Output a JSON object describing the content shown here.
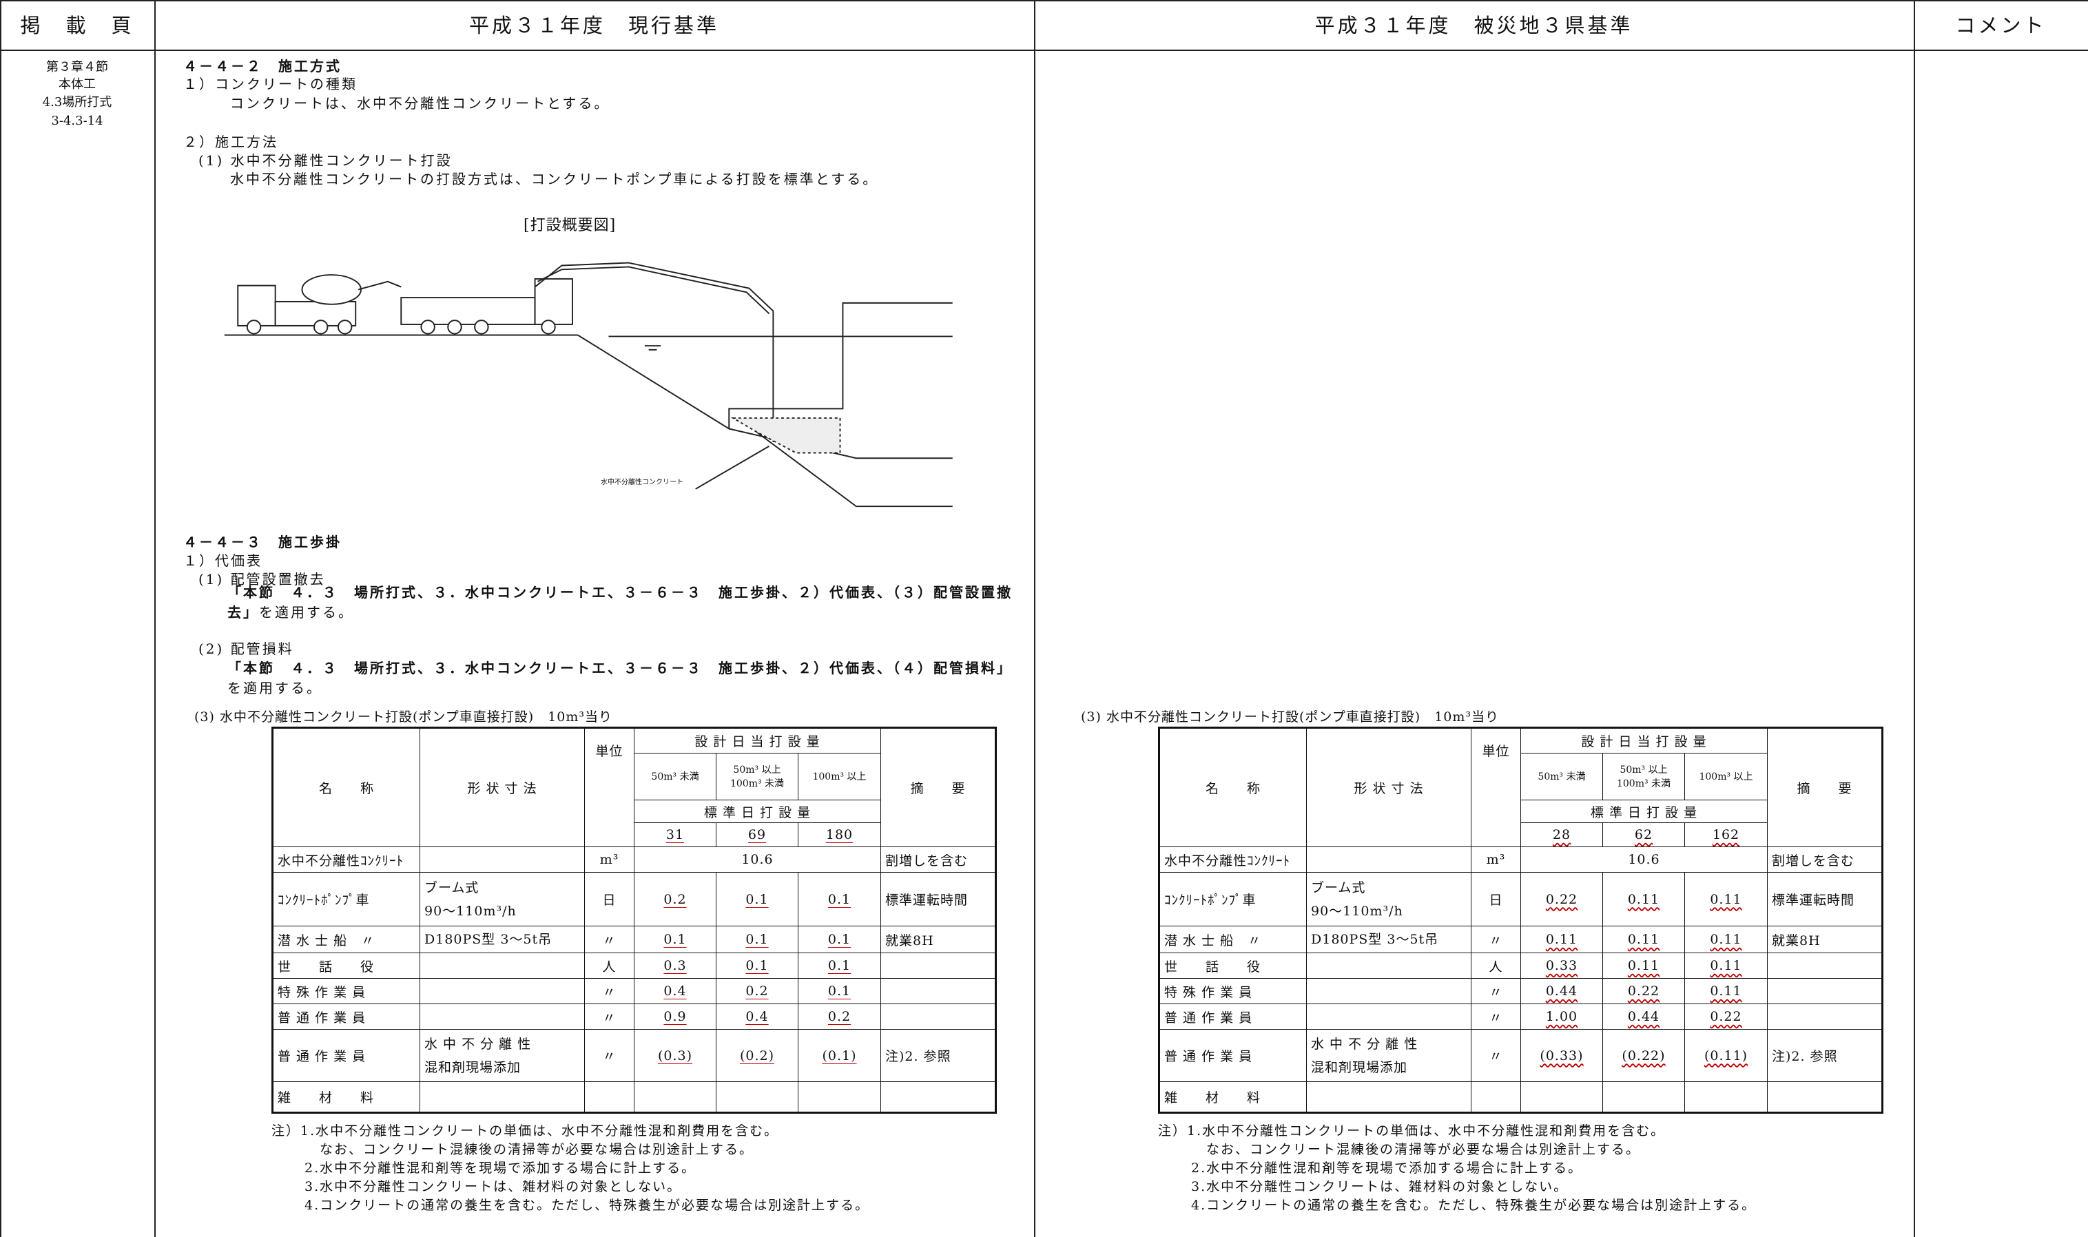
{
  "header": {
    "page": "掲　載　頁",
    "current": "平成３１年度　現行基準",
    "disaster": "平成３１年度　被災地３県基準",
    "comment": "コメント"
  },
  "page_ref": [
    "第３章４節",
    "本体工",
    "4.3場所打式",
    "3-4.3-14"
  ],
  "current": {
    "section1": {
      "heading": "４－４－２　施工方式",
      "item1": "１）コンクリートの種類",
      "item1_text": "コンクリートは、水中不分離性コンクリートとする。",
      "item2": "２）施工方法",
      "item2_sub": "(1) 水中不分離性コンクリート打設",
      "item2_text": "水中不分離性コンクリートの打設方式は、コンクリートポンプ車による打設を標準とする。"
    },
    "diagram": {
      "caption": "[打設概要図]",
      "label": "水中不分離性コンクリート"
    },
    "section2": {
      "heading": "４－４－３　施工歩掛",
      "item1": "１）代価表",
      "sub1": "(1) 配管設置撤去",
      "sub1_ref": "「本節　４．３　場所打式、３．水中コンクリートエ、３－６－３　施工歩掛、２）代価表、（３）配管設置撤去」",
      "sub1_tail": "を適用する。",
      "sub2": "(2) 配管損料",
      "sub2_ref": "「本節　４．３　場所打式、３．水中コンクリートエ、３－６－３　施工歩掛、２）代価表、（４）配管損料」",
      "sub2_tail": "を適用する。"
    },
    "table": {
      "title": "(3) 水中不分離性コンクリート打設(ポンプ車直接打設)　10m³当り",
      "columns": {
        "name": "名　　称",
        "shape": "形 状 寸 法",
        "unit": "単位",
        "design": "設 計 日 当 打 設 量",
        "sizes": [
          [
            "50m³ 未満"
          ],
          [
            "50m³ 以上",
            "100m³ 未満"
          ],
          [
            "100m³ 以上"
          ]
        ],
        "standard": "標 準 日 打 設 量",
        "remarks": "摘　　要"
      },
      "standard_values": [
        "31",
        "69",
        "180"
      ],
      "rows": [
        {
          "name": "水中不分離性ｺﾝｸﾘｰﾄ",
          "unit": "m³",
          "merged_value": "10.6",
          "remarks": "割増しを含む"
        },
        {
          "name": "ｺﾝｸﾘｰﾄﾎﾟﾝﾌﾟ車",
          "shape": [
            "ブーム式",
            "90～110m³/h"
          ],
          "unit": "日",
          "values": [
            "0.2",
            "0.1",
            "0.1"
          ],
          "remarks": "標準運転時間"
        },
        {
          "name": "潜 水 士 船　〃",
          "shape": [
            "D180PS型 3～5t吊"
          ],
          "unit": "〃",
          "values": [
            "0.1",
            "0.1",
            "0.1"
          ],
          "remarks": "就業8H"
        },
        {
          "name": "世　　話　　役",
          "unit": "人",
          "values": [
            "0.3",
            "0.1",
            "0.1"
          ]
        },
        {
          "name": "特 殊 作 業 員",
          "unit": "〃",
          "values": [
            "0.4",
            "0.2",
            "0.1"
          ]
        },
        {
          "name": "普 通 作 業 員",
          "unit": "〃",
          "values": [
            "0.9",
            "0.4",
            "0.2"
          ]
        },
        {
          "name": "普 通 作 業 員",
          "shape": [
            "水 中 不 分 離 性",
            "混和剤現場添加"
          ],
          "unit": "〃",
          "values": [
            "(0.3)",
            "(0.2)",
            "(0.1)"
          ],
          "remarks": "注)2. 参照"
        },
        {
          "name": "雑　　材　　料"
        }
      ],
      "underline": "solid",
      "underline_color": "#c00000"
    },
    "notes": [
      "注）1.水中不分離性コンクリートの単価は、水中不分離性混和剤費用を含む。",
      "なお、コンクリート混練後の清掃等が必要な場合は別途計上する。",
      "2.水中不分離性混和剤等を現場で添加する場合に計上する。",
      "3.水中不分離性コンクリートは、雑材料の対象としない。",
      "4.コンクリートの通常の養生を含む。ただし、特殊養生が必要な場合は別途計上する。"
    ]
  },
  "disaster": {
    "table": {
      "title": "(3) 水中不分離性コンクリート打設(ポンプ車直接打設)　10m³当り",
      "columns": {
        "name": "名　　称",
        "shape": "形 状 寸 法",
        "unit": "単位",
        "design": "設 計 日 当 打 設 量",
        "sizes": [
          [
            "50m³ 未満"
          ],
          [
            "50m³ 以上",
            "100m³ 未満"
          ],
          [
            "100m³ 以上"
          ]
        ],
        "standard": "標 準 日 打 設 量",
        "remarks": "摘　　要"
      },
      "standard_values": [
        "28",
        "62",
        "162"
      ],
      "rows": [
        {
          "name": "水中不分離性ｺﾝｸﾘｰﾄ",
          "unit": "m³",
          "merged_value": "10.6",
          "remarks": "割増しを含む"
        },
        {
          "name": "ｺﾝｸﾘｰﾄﾎﾟﾝﾌﾟ車",
          "shape": [
            "ブーム式",
            "90～110m³/h"
          ],
          "unit": "日",
          "values": [
            "0.22",
            "0.11",
            "0.11"
          ],
          "remarks": "標準運転時間"
        },
        {
          "name": "潜 水 士 船　〃",
          "shape": [
            "D180PS型 3～5t吊"
          ],
          "unit": "〃",
          "values": [
            "0.11",
            "0.11",
            "0.11"
          ],
          "remarks": "就業8H"
        },
        {
          "name": "世　　話　　役",
          "unit": "人",
          "values": [
            "0.33",
            "0.11",
            "0.11"
          ]
        },
        {
          "name": "特 殊 作 業 員",
          "unit": "〃",
          "values": [
            "0.44",
            "0.22",
            "0.11"
          ]
        },
        {
          "name": "普 通 作 業 員",
          "unit": "〃",
          "values": [
            "1.00",
            "0.44",
            "0.22"
          ]
        },
        {
          "name": "普 通 作 業 員",
          "shape": [
            "水 中 不 分 離 性",
            "混和剤現場添加"
          ],
          "unit": "〃",
          "values": [
            "(0.33)",
            "(0.22)",
            "(0.11)"
          ],
          "remarks": "注)2. 参照"
        },
        {
          "name": "雑　　材　　料"
        }
      ],
      "underline": "wavy",
      "underline_color": "#c00000"
    },
    "notes": [
      "注）1.水中不分離性コンクリートの単価は、水中不分離性混和剤費用を含む。",
      "なお、コンクリート混練後の清掃等が必要な場合は別途計上する。",
      "2.水中不分離性混和剤等を現場で添加する場合に計上する。",
      "3.水中不分離性コンクリートは、雑材料の対象としない。",
      "4.コンクリートの通常の養生を含む。ただし、特殊養生が必要な場合は別途計上する。"
    ]
  }
}
